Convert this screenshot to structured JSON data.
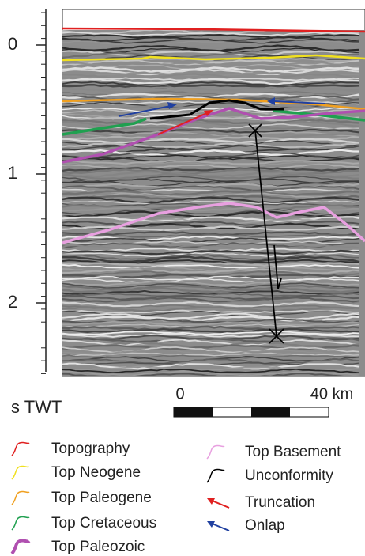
{
  "axis": {
    "label": "s TWT",
    "ticks": [
      0,
      1,
      2
    ]
  },
  "scale_bar": {
    "start": "0",
    "end": "40 km"
  },
  "legend": [
    {
      "label": "Topography",
      "color": "#e02020"
    },
    {
      "label": "Top Neogene",
      "color": "#f0e020"
    },
    {
      "label": "Top Paleogene",
      "color": "#f0a020"
    },
    {
      "label": "Top Cretaceous",
      "color": "#20a050"
    },
    {
      "label": "Top Paleozoic",
      "color": "#b050b0"
    },
    {
      "label": "Top Basement",
      "color": "#e8a0e0"
    },
    {
      "label": "Unconformity",
      "color": "#000000"
    },
    {
      "label": "Truncation",
      "color": "#e02020"
    },
    {
      "label": "Onlap",
      "color": "#2040a0"
    }
  ]
}
